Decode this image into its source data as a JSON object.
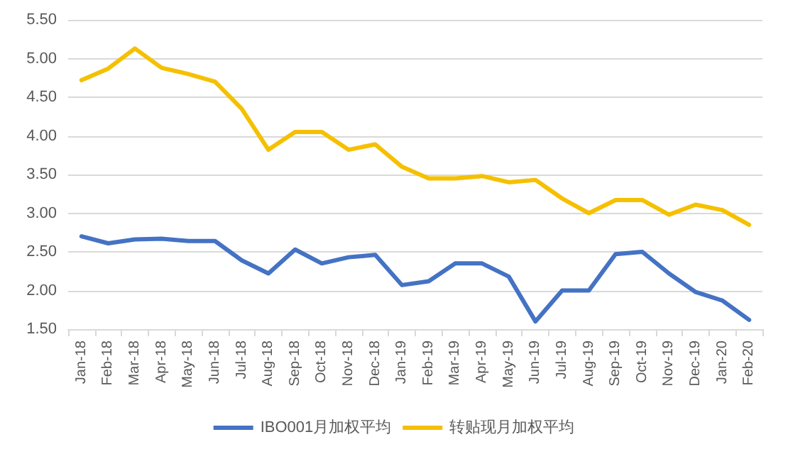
{
  "chart_data": {
    "type": "line",
    "categories": [
      "Jan-18",
      "Feb-18",
      "Mar-18",
      "Apr-18",
      "May-18",
      "Jun-18",
      "Jul-18",
      "Aug-18",
      "Sep-18",
      "Oct-18",
      "Nov-18",
      "Dec-18",
      "Jan-19",
      "Feb-19",
      "Mar-19",
      "Apr-19",
      "May-19",
      "Jun-19",
      "Jul-19",
      "Aug-19",
      "Sep-19",
      "Oct-19",
      "Nov-19",
      "Dec-19",
      "Jan-20",
      "Feb-20"
    ],
    "series": [
      {
        "name": "IBO001月加权平均",
        "color": "#4472c4",
        "values": [
          2.7,
          2.61,
          2.66,
          2.67,
          2.64,
          2.64,
          2.39,
          2.22,
          2.53,
          2.35,
          2.43,
          2.46,
          2.07,
          2.12,
          2.35,
          2.35,
          2.18,
          1.6,
          2.0,
          2.0,
          2.47,
          2.5,
          2.22,
          1.98,
          1.87,
          1.62
        ]
      },
      {
        "name": "转贴现月加权平均",
        "color": "#f5c000",
        "values": [
          4.72,
          4.87,
          5.13,
          4.88,
          4.8,
          4.7,
          4.35,
          3.82,
          4.05,
          4.05,
          3.82,
          3.89,
          3.6,
          3.45,
          3.45,
          3.48,
          3.4,
          3.43,
          3.19,
          3.0,
          3.17,
          3.17,
          2.98,
          3.11,
          3.04,
          2.85
        ]
      }
    ],
    "ylim": [
      1.5,
      5.5
    ],
    "yticks": [
      {
        "value": 1.5,
        "label": "1.50"
      },
      {
        "value": 2,
        "label": "2.00"
      },
      {
        "value": 2.5,
        "label": "2.50"
      },
      {
        "value": 3,
        "label": "3.00"
      },
      {
        "value": 3.5,
        "label": "3.50"
      },
      {
        "value": 4,
        "label": "4.00"
      },
      {
        "value": 4.5,
        "label": "4.50"
      },
      {
        "value": 5,
        "label": "5.00"
      },
      {
        "value": 5.5,
        "label": "5.50"
      }
    ],
    "grid": "y",
    "legend": "bottom",
    "marker": "none",
    "line_style": "solid"
  }
}
